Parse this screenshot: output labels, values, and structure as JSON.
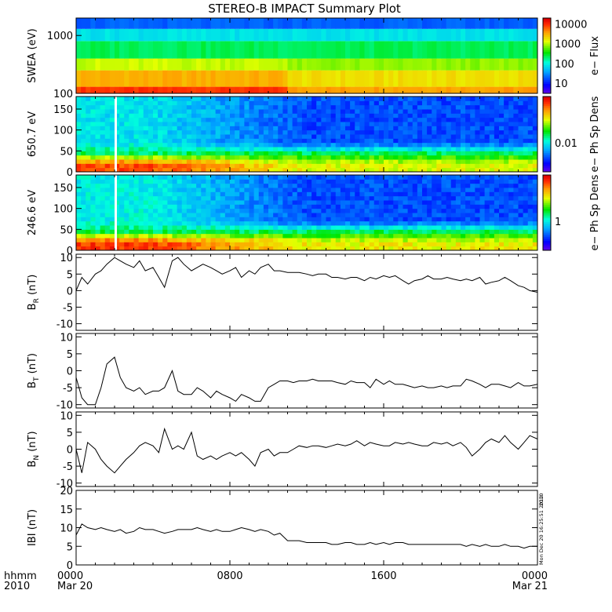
{
  "title": "STEREO-B IMPACT Summary Plot",
  "x_axis": {
    "ticks": [
      "0000",
      "0800",
      "1600",
      "0000"
    ],
    "dates": [
      "Mar 20",
      "Mar 21"
    ],
    "label_line1": "hhmm",
    "label_line2": "2010"
  },
  "timestamp_text": "Mon Dec 20 16:25:51 2010",
  "timestamp_year": "2010",
  "colors": {
    "line": "#000000",
    "background": "#ffffff"
  },
  "chart_data": [
    {
      "type": "heatmap",
      "id": "swea",
      "ylabel": "SWEA (eV)",
      "yscale": "log",
      "ylim": [
        100,
        2000
      ],
      "yticks": [
        "100",
        "1000"
      ],
      "x": [
        0,
        24
      ],
      "colorbar": {
        "label": "e− Flux",
        "scale": "log",
        "range": [
          3,
          20000
        ],
        "ticks": [
          "10",
          "100",
          "1000",
          "10000"
        ]
      },
      "bands": [
        {
          "y_range": [
            100,
            130
          ],
          "level_before_11h": 0.92,
          "level_after_11h": 0.82
        },
        {
          "y_range": [
            130,
            250
          ],
          "level_before_11h": 0.8,
          "level_after_11h": 0.74
        },
        {
          "y_range": [
            250,
            400
          ],
          "level_before_11h": 0.68,
          "level_after_11h": 0.64
        },
        {
          "y_range": [
            400,
            800
          ],
          "level_before_11h": 0.5,
          "level_after_11h": 0.5
        },
        {
          "y_range": [
            800,
            1300
          ],
          "level_before_11h": 0.38,
          "level_after_11h": 0.38
        },
        {
          "y_range": [
            1300,
            2000
          ],
          "level_before_11h": 0.22,
          "level_after_11h": 0.22
        }
      ]
    },
    {
      "type": "heatmap",
      "id": "pad650",
      "ylabel": "650.7 eV",
      "ylim": [
        0,
        180
      ],
      "yticks": [
        "0",
        "50",
        "100",
        "150"
      ],
      "x": [
        0,
        24
      ],
      "colorbar": {
        "label": "e− Ph Sp Dens",
        "ticks": [
          "0.01"
        ]
      },
      "core_level_early": 0.9,
      "core_level_late": 0.7,
      "halo_level_early": 0.38,
      "halo_level_late": 0.2
    },
    {
      "type": "heatmap",
      "id": "pad246",
      "ylabel": "246.6 eV",
      "ylim": [
        0,
        180
      ],
      "yticks": [
        "0",
        "50",
        "100",
        "150"
      ],
      "x": [
        0,
        24
      ],
      "colorbar": {
        "label": "e− Ph Sp Dens",
        "ticks": [
          "1"
        ]
      },
      "core_level_early": 0.92,
      "core_level_late": 0.72,
      "halo_level_early": 0.4,
      "halo_level_late": 0.2
    },
    {
      "type": "line",
      "id": "br",
      "ylabel_main": "B",
      "ylabel_sub": "R",
      "ylabel_unit": " (nT)",
      "ylim": [
        -12,
        11
      ],
      "yticks": [
        -10,
        -5,
        0,
        5,
        10
      ],
      "x": [
        0,
        0.3,
        0.6,
        1,
        1.3,
        1.6,
        2,
        2.3,
        2.6,
        3,
        3.3,
        3.6,
        4,
        4.3,
        4.6,
        5,
        5.3,
        5.6,
        6,
        6.3,
        6.6,
        7,
        7.3,
        7.6,
        8,
        8.3,
        8.6,
        9,
        9.3,
        9.6,
        10,
        10.3,
        10.6,
        11,
        11.3,
        11.6,
        12,
        12.3,
        12.6,
        13,
        13.3,
        13.6,
        14,
        14.3,
        14.6,
        15,
        15.3,
        15.6,
        16,
        16.3,
        16.6,
        17,
        17.3,
        17.6,
        18,
        18.3,
        18.6,
        19,
        19.3,
        19.6,
        20,
        20.3,
        20.6,
        21,
        21.3,
        21.6,
        22,
        22.3,
        22.6,
        23,
        23.3,
        23.6,
        24
      ],
      "y": [
        0,
        4,
        2,
        5,
        6,
        8,
        10,
        9,
        8,
        7,
        9,
        6,
        7,
        4,
        1,
        9,
        10,
        8,
        6,
        7,
        8,
        7,
        6,
        5,
        6,
        7,
        4,
        6,
        5,
        7,
        8,
        6,
        6,
        5.5,
        5.5,
        5.5,
        5,
        4.5,
        5,
        5,
        4,
        4,
        3.5,
        4,
        4,
        3,
        4,
        3.5,
        4.5,
        4,
        4.5,
        3,
        2,
        3,
        3.5,
        4.5,
        3.5,
        3.5,
        4,
        3.5,
        3,
        3.5,
        3,
        4,
        2,
        2.5,
        3,
        4,
        3,
        1.5,
        1,
        0,
        -0.5
      ]
    },
    {
      "type": "line",
      "id": "bt",
      "ylabel_main": "B",
      "ylabel_sub": "T",
      "ylabel_unit": " (nT)",
      "ylim": [
        -11,
        11
      ],
      "yticks": [
        -10,
        -5,
        0,
        5,
        10
      ],
      "x": [
        0,
        0.3,
        0.6,
        1,
        1.3,
        1.6,
        2,
        2.3,
        2.6,
        3,
        3.3,
        3.6,
        4,
        4.3,
        4.6,
        5,
        5.3,
        5.6,
        6,
        6.3,
        6.6,
        7,
        7.3,
        7.6,
        8,
        8.3,
        8.6,
        9,
        9.3,
        9.6,
        10,
        10.3,
        10.6,
        11,
        11.3,
        11.6,
        12,
        12.3,
        12.6,
        13,
        13.3,
        13.6,
        14,
        14.3,
        14.6,
        15,
        15.3,
        15.6,
        16,
        16.3,
        16.6,
        17,
        17.3,
        17.6,
        18,
        18.3,
        18.6,
        19,
        19.3,
        19.6,
        20,
        20.3,
        20.6,
        21,
        21.3,
        21.6,
        22,
        22.3,
        22.6,
        23,
        23.3,
        23.6,
        24
      ],
      "y": [
        -2,
        -8,
        -10,
        -10,
        -5,
        2,
        4,
        -2,
        -5,
        -6,
        -5,
        -7,
        -6,
        -6,
        -5,
        0,
        -6,
        -7,
        -7,
        -5,
        -6,
        -8,
        -6,
        -7,
        -8,
        -9,
        -7,
        -8,
        -9,
        -9,
        -5,
        -4,
        -3,
        -3,
        -3.5,
        -3,
        -3,
        -2.5,
        -3,
        -3,
        -3,
        -3.5,
        -4,
        -3,
        -3.5,
        -3.5,
        -5,
        -2.5,
        -4,
        -3,
        -4,
        -4,
        -4.5,
        -5,
        -4.5,
        -5,
        -5,
        -4.5,
        -5,
        -4.5,
        -4.5,
        -2.5,
        -3,
        -4,
        -5,
        -4,
        -4,
        -4.5,
        -5,
        -3.5,
        -4.5,
        -4.5,
        -4
      ]
    },
    {
      "type": "line",
      "id": "bn",
      "ylabel_main": "B",
      "ylabel_sub": "N",
      "ylabel_unit": " (nT)",
      "ylim": [
        -11,
        11
      ],
      "yticks": [
        -10,
        -5,
        0,
        5,
        10
      ],
      "x": [
        0,
        0.3,
        0.6,
        1,
        1.3,
        1.6,
        2,
        2.3,
        2.6,
        3,
        3.3,
        3.6,
        4,
        4.3,
        4.6,
        5,
        5.3,
        5.6,
        6,
        6.3,
        6.6,
        7,
        7.3,
        7.6,
        8,
        8.3,
        8.6,
        9,
        9.3,
        9.6,
        10,
        10.3,
        10.6,
        11,
        11.3,
        11.6,
        12,
        12.3,
        12.6,
        13,
        13.3,
        13.6,
        14,
        14.3,
        14.6,
        15,
        15.3,
        15.6,
        16,
        16.3,
        16.6,
        17,
        17.3,
        17.6,
        18,
        18.3,
        18.6,
        19,
        19.3,
        19.6,
        20,
        20.3,
        20.6,
        21,
        21.3,
        21.6,
        22,
        22.3,
        22.6,
        23,
        23.3,
        23.6,
        24
      ],
      "y": [
        0,
        -7,
        2,
        0,
        -3,
        -5,
        -7,
        -5,
        -3,
        -1,
        1,
        2,
        1,
        -1,
        6,
        0,
        1,
        0,
        5,
        -2,
        -3,
        -2,
        -3,
        -2,
        -1,
        -2,
        -1,
        -3,
        -5,
        -1,
        0,
        -2,
        -1,
        -1,
        0,
        1,
        0.5,
        1,
        1,
        0.5,
        1,
        1.5,
        1,
        1.5,
        2.5,
        1,
        2,
        1.5,
        1,
        1,
        2,
        1.5,
        2,
        1.5,
        1,
        1,
        2,
        1.5,
        2,
        1,
        2,
        0.5,
        -2,
        0,
        2,
        3,
        2,
        4,
        2,
        0,
        2,
        4,
        3
      ]
    },
    {
      "type": "line",
      "id": "bmag",
      "ylabel_main": "IBI",
      "ylabel_unit": " (nT)",
      "ylim": [
        0,
        20
      ],
      "yticks": [
        0,
        5,
        10,
        15,
        20
      ],
      "x": [
        0,
        0.3,
        0.6,
        1,
        1.3,
        1.6,
        2,
        2.3,
        2.6,
        3,
        3.3,
        3.6,
        4,
        4.3,
        4.6,
        5,
        5.3,
        5.6,
        6,
        6.3,
        6.6,
        7,
        7.3,
        7.6,
        8,
        8.3,
        8.6,
        9,
        9.3,
        9.6,
        10,
        10.3,
        10.6,
        11,
        11.3,
        11.6,
        12,
        12.3,
        12.6,
        13,
        13.3,
        13.6,
        14,
        14.3,
        14.6,
        15,
        15.3,
        15.6,
        16,
        16.3,
        16.6,
        17,
        17.3,
        17.6,
        18,
        18.3,
        18.6,
        19,
        19.3,
        19.6,
        20,
        20.3,
        20.6,
        21,
        21.3,
        21.6,
        22,
        22.3,
        22.6,
        23,
        23.3,
        23.6,
        24
      ],
      "y": [
        8,
        11,
        10,
        9.5,
        10,
        9.5,
        9,
        9.5,
        8.5,
        9,
        10,
        9.5,
        9.5,
        9,
        8.5,
        9,
        9.5,
        9.5,
        9.5,
        10,
        9.5,
        9,
        9.5,
        9,
        9,
        9.5,
        10,
        9.5,
        9,
        9.5,
        9,
        8,
        8.5,
        6.5,
        6.5,
        6.5,
        6,
        6,
        6,
        6,
        5.5,
        5.5,
        6,
        6,
        5.5,
        5.5,
        6,
        5.5,
        6,
        5.5,
        6,
        6,
        5.5,
        5.5,
        5.5,
        5.5,
        5.5,
        5.5,
        5.5,
        5.5,
        5.5,
        5,
        5.5,
        5,
        5.5,
        5,
        5,
        5.5,
        5,
        5,
        4.5,
        5,
        5
      ]
    }
  ]
}
